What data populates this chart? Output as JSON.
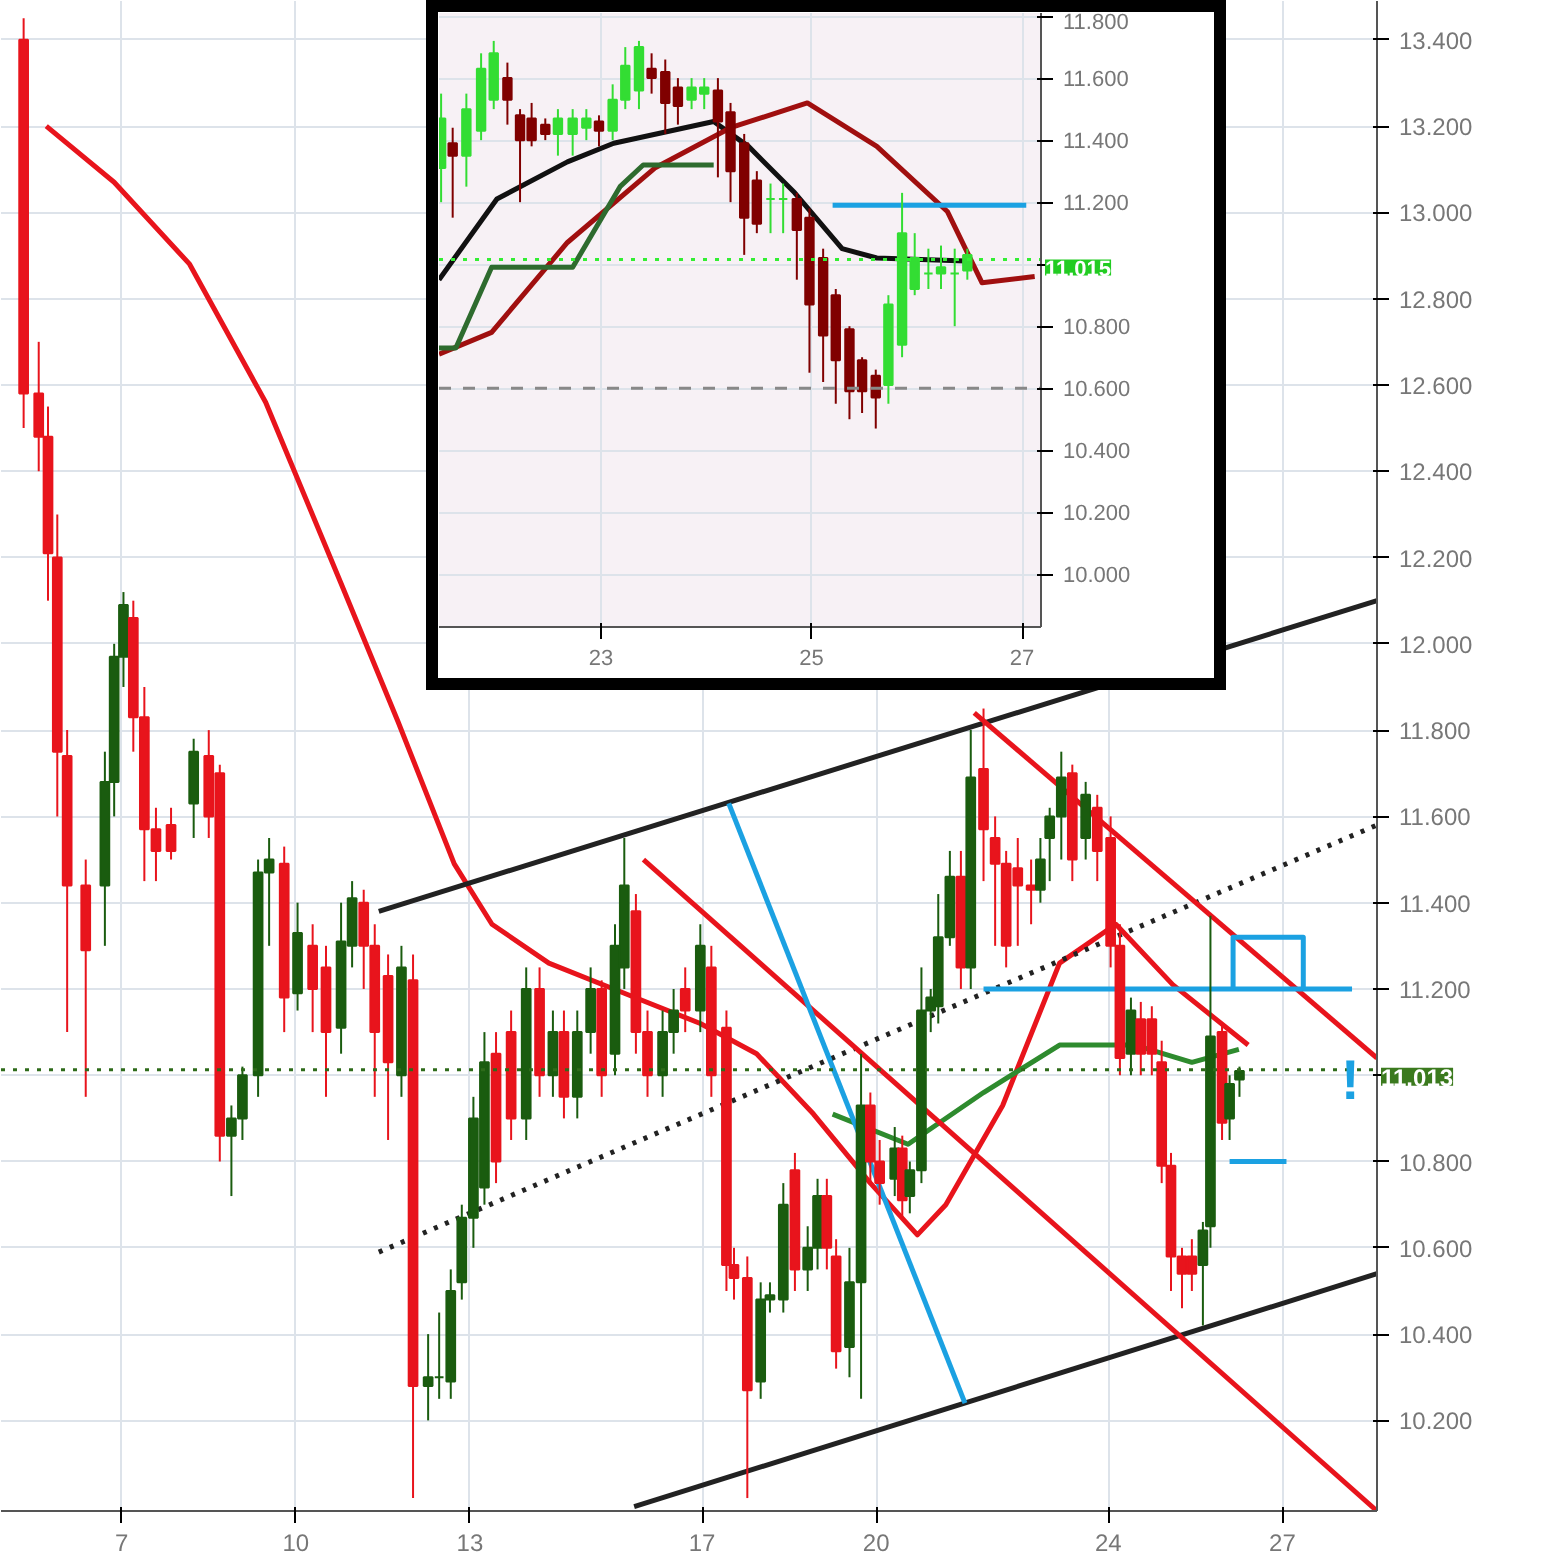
{
  "chart_data": [
    {
      "type": "candlestick",
      "x": [
        5.31,
        5.57,
        5.73,
        5.89,
        6.06,
        6.38,
        6.71,
        6.87,
        7.03,
        7.2,
        7.39,
        7.59,
        7.85,
        8.24,
        8.5,
        8.69,
        8.89,
        9.08,
        9.35,
        9.54,
        9.8,
        10.03,
        10.29,
        10.52,
        10.78,
        10.97,
        11.17,
        11.36,
        11.59,
        11.82,
        12.02,
        12.28,
        12.47,
        12.67,
        12.86,
        13.06,
        13.25,
        13.45,
        13.71,
        13.97,
        14.2,
        14.43,
        14.62,
        14.85,
        15.08,
        15.27,
        15.5,
        15.66,
        15.86,
        16.06,
        16.32,
        16.51,
        16.71,
        16.97,
        17.16,
        17.42,
        17.55,
        17.78,
        18.01,
        18.17,
        18.4,
        18.6,
        18.82,
        18.99,
        19.15,
        19.31,
        19.54,
        19.74,
        19.9,
        20.06,
        20.32,
        20.45,
        20.58,
        20.78,
        20.94,
        21.07,
        21.27,
        21.46,
        21.63,
        21.85,
        22.05,
        22.24,
        22.44,
        22.67,
        22.83,
        22.99,
        23.19,
        23.38,
        23.61,
        23.81,
        24.04,
        24.2,
        24.39,
        24.56,
        24.75,
        24.92,
        25.08,
        25.27,
        25.44,
        25.63,
        25.76,
        25.96,
        26.09,
        26.26
      ],
      "ohlc": [
        [
          13.4,
          13.45,
          12.5,
          12.58
        ],
        [
          12.58,
          12.7,
          12.4,
          12.48
        ],
        [
          12.48,
          12.55,
          12.1,
          12.21
        ],
        [
          12.2,
          12.3,
          11.6,
          11.75
        ],
        [
          11.74,
          11.8,
          11.1,
          11.44
        ],
        [
          11.44,
          11.5,
          10.95,
          11.29
        ],
        [
          11.44,
          11.75,
          11.3,
          11.68
        ],
        [
          11.68,
          12.0,
          11.6,
          11.97
        ],
        [
          11.97,
          12.12,
          11.9,
          12.09
        ],
        [
          12.06,
          12.1,
          11.75,
          11.83
        ],
        [
          11.83,
          11.9,
          11.45,
          11.57
        ],
        [
          11.57,
          11.62,
          11.45,
          11.52
        ],
        [
          11.58,
          11.62,
          11.5,
          11.52
        ],
        [
          11.63,
          11.78,
          11.55,
          11.75
        ],
        [
          11.74,
          11.8,
          11.55,
          11.6
        ],
        [
          11.7,
          11.72,
          10.8,
          10.86
        ],
        [
          10.86,
          10.93,
          10.72,
          10.9
        ],
        [
          10.9,
          11.02,
          10.85,
          11.0
        ],
        [
          11.0,
          11.5,
          10.95,
          11.47
        ],
        [
          11.47,
          11.55,
          11.3,
          11.5
        ],
        [
          11.49,
          11.53,
          11.1,
          11.18
        ],
        [
          11.19,
          11.4,
          11.15,
          11.33
        ],
        [
          11.3,
          11.35,
          11.1,
          11.2
        ],
        [
          11.25,
          11.3,
          10.95,
          11.1
        ],
        [
          11.11,
          11.4,
          11.05,
          11.31
        ],
        [
          11.3,
          11.45,
          11.25,
          11.41
        ],
        [
          11.4,
          11.43,
          11.2,
          11.3
        ],
        [
          11.3,
          11.35,
          10.95,
          11.1
        ],
        [
          11.23,
          11.28,
          10.85,
          11.03
        ],
        [
          11.0,
          11.3,
          10.95,
          11.25
        ],
        [
          11.22,
          11.28,
          10.02,
          10.28
        ],
        [
          10.28,
          10.4,
          10.2,
          10.3
        ],
        [
          10.3,
          10.45,
          10.25,
          10.3
        ],
        [
          10.29,
          10.55,
          10.25,
          10.5
        ],
        [
          10.52,
          10.7,
          10.48,
          10.67
        ],
        [
          10.67,
          10.95,
          10.6,
          10.9
        ],
        [
          10.74,
          11.1,
          10.7,
          11.03
        ],
        [
          11.05,
          11.1,
          10.75,
          10.8
        ],
        [
          11.1,
          11.15,
          10.85,
          10.9
        ],
        [
          10.9,
          11.25,
          10.85,
          11.2
        ],
        [
          11.2,
          11.25,
          10.95,
          11.0
        ],
        [
          11.0,
          11.15,
          10.95,
          11.1
        ],
        [
          11.1,
          11.15,
          10.9,
          10.95
        ],
        [
          10.95,
          11.15,
          10.9,
          11.1
        ],
        [
          11.1,
          11.25,
          11.05,
          11.2
        ],
        [
          11.2,
          11.22,
          10.95,
          11.0
        ],
        [
          11.05,
          11.35,
          11.0,
          11.3
        ],
        [
          11.25,
          11.55,
          11.2,
          11.44
        ],
        [
          11.38,
          11.42,
          11.05,
          11.1
        ],
        [
          11.1,
          11.15,
          10.95,
          11.0
        ],
        [
          11.0,
          11.15,
          10.95,
          11.1
        ],
        [
          11.1,
          11.2,
          11.05,
          11.15
        ],
        [
          11.2,
          11.25,
          11.1,
          11.15
        ],
        [
          11.15,
          11.35,
          11.1,
          11.3
        ],
        [
          11.25,
          11.3,
          10.95,
          11.0
        ],
        [
          11.11,
          11.15,
          10.5,
          10.56
        ],
        [
          10.56,
          10.6,
          10.48,
          10.53
        ],
        [
          10.53,
          10.58,
          10.02,
          10.27
        ],
        [
          10.29,
          10.52,
          10.25,
          10.48
        ],
        [
          10.48,
          10.52,
          10.45,
          10.49
        ],
        [
          10.48,
          10.75,
          10.45,
          10.7
        ],
        [
          10.78,
          10.82,
          10.5,
          10.55
        ],
        [
          10.55,
          10.65,
          10.5,
          10.6
        ],
        [
          10.6,
          10.76,
          10.55,
          10.72
        ],
        [
          10.72,
          10.76,
          10.55,
          10.6
        ],
        [
          10.58,
          10.62,
          10.32,
          10.36
        ],
        [
          10.37,
          10.6,
          10.3,
          10.52
        ],
        [
          10.52,
          11.05,
          10.25,
          10.93
        ],
        [
          10.93,
          10.96,
          10.75,
          10.8
        ],
        [
          10.8,
          10.85,
          10.7,
          10.75
        ],
        [
          10.76,
          10.88,
          10.72,
          10.83
        ],
        [
          10.83,
          10.86,
          10.67,
          10.71
        ],
        [
          10.72,
          10.8,
          10.68,
          10.78
        ],
        [
          10.78,
          11.25,
          10.75,
          11.15
        ],
        [
          11.15,
          11.2,
          11.1,
          11.18
        ],
        [
          11.16,
          11.42,
          11.12,
          11.32
        ],
        [
          11.32,
          11.52,
          11.3,
          11.46
        ],
        [
          11.46,
          11.52,
          11.2,
          11.25
        ],
        [
          11.25,
          11.8,
          11.2,
          11.69
        ],
        [
          11.71,
          11.85,
          11.45,
          11.57
        ],
        [
          11.55,
          11.6,
          11.3,
          11.49
        ],
        [
          11.49,
          11.52,
          11.25,
          11.3
        ],
        [
          11.48,
          11.55,
          11.3,
          11.44
        ],
        [
          11.44,
          11.5,
          11.35,
          11.43
        ],
        [
          11.43,
          11.55,
          11.4,
          11.5
        ],
        [
          11.55,
          11.62,
          11.45,
          11.6
        ],
        [
          11.6,
          11.75,
          11.5,
          11.69
        ],
        [
          11.7,
          11.72,
          11.45,
          11.5
        ],
        [
          11.55,
          11.68,
          11.5,
          11.65
        ],
        [
          11.62,
          11.65,
          11.45,
          11.52
        ],
        [
          11.55,
          11.6,
          11.25,
          11.3
        ],
        [
          11.3,
          11.35,
          11.0,
          11.04
        ],
        [
          11.05,
          11.18,
          11.0,
          11.15
        ],
        [
          11.13,
          11.17,
          11.0,
          11.05
        ],
        [
          11.13,
          11.16,
          11.0,
          11.05
        ],
        [
          11.03,
          11.08,
          10.75,
          10.79
        ],
        [
          10.79,
          10.82,
          10.5,
          10.58
        ],
        [
          10.58,
          10.6,
          10.46,
          10.54
        ],
        [
          10.58,
          10.62,
          10.5,
          10.54
        ],
        [
          10.56,
          10.66,
          10.42,
          10.64
        ],
        [
          10.65,
          11.37,
          10.6,
          11.09
        ],
        [
          11.1,
          11.12,
          10.85,
          10.89
        ],
        [
          10.9,
          11.0,
          10.85,
          10.98
        ],
        [
          10.99,
          11.02,
          10.95,
          11.01
        ]
      ],
      "series": [
        {
          "type": "line",
          "color": "#e8141c",
          "x": [
            5.7,
            6.87,
            8.17,
            9.48,
            10.78,
            11.76,
            12.73,
            13.38,
            14.36,
            15.66,
            16.97,
            17.94,
            18.92,
            19.9,
            20.71,
            21.2,
            22.18,
            23.16,
            24.13,
            25.11,
            26.41
          ],
          "values": [
            13.2,
            13.07,
            12.88,
            12.56,
            12.14,
            11.82,
            11.49,
            11.35,
            11.26,
            11.19,
            11.12,
            11.05,
            10.91,
            10.75,
            10.63,
            10.7,
            10.93,
            11.26,
            11.35,
            11.21,
            11.07
          ]
        },
        {
          "type": "line",
          "color": "#2e8b2e",
          "x": [
            19.25,
            20.55,
            21.85,
            23.16,
            24.46,
            25.44,
            26.25
          ],
          "values": [
            10.91,
            10.84,
            10.96,
            11.07,
            11.07,
            11.03,
            11.06
          ]
        },
        {
          "type": "line",
          "color": "#222222",
          "x": [
            11.43,
            28.63
          ],
          "values": [
            11.38,
            12.1
          ]
        },
        {
          "type": "line",
          "color": "#222222",
          "x": [
            15.83,
            28.63
          ],
          "values": [
            10.0,
            10.54
          ]
        },
        {
          "type": "line",
          "color": "#222222",
          "line_style": "dotted",
          "x": [
            11.43,
            28.63
          ],
          "values": [
            10.59,
            11.58
          ]
        },
        {
          "type": "line",
          "color": "#e8141c",
          "x": [
            21.69,
            28.63
          ],
          "values": [
            11.84,
            11.04
          ]
        },
        {
          "type": "line",
          "color": "#e8141c",
          "x": [
            15.99,
            28.63
          ],
          "values": [
            11.5,
            9.99
          ]
        },
        {
          "type": "line",
          "color": "#1ba1e2",
          "x": [
            21.85,
            28.2
          ],
          "values": [
            11.2,
            11.2
          ]
        },
        {
          "type": "line",
          "color": "#1ba1e2",
          "x": [
            17.46,
            21.53
          ],
          "values": [
            11.63,
            10.24
          ]
        },
        {
          "type": "line",
          "color": "#1ba1e2",
          "x": [
            26.15,
            26.15,
            27.36,
            27.36
          ],
          "values": [
            11.2,
            11.32,
            11.32,
            11.2
          ]
        },
        {
          "type": "line",
          "color": "#1ba1e2",
          "x": [
            26.09,
            27.07
          ],
          "values": [
            10.8,
            10.8
          ]
        }
      ],
      "xlim": [
        4.92,
        28.63
      ],
      "ylim": [
        9.99,
        13.49
      ],
      "xticks": [
        7,
        10,
        13,
        17,
        20,
        24,
        27
      ],
      "yticks": [
        {
          "value": 10.2,
          "label": "10.200"
        },
        {
          "value": 10.4,
          "label": "10.400"
        },
        {
          "value": 10.6,
          "label": "10.600"
        },
        {
          "value": 10.8,
          "label": "10.800"
        },
        {
          "value": 11.0,
          "label": null
        },
        {
          "value": 11.2,
          "label": "11.200"
        },
        {
          "value": 11.4,
          "label": "11.400"
        },
        {
          "value": 11.6,
          "label": "11.600"
        },
        {
          "value": 11.8,
          "label": "11.800"
        },
        {
          "value": 12.0,
          "label": "12.000"
        },
        {
          "value": 12.2,
          "label": "12.200"
        },
        {
          "value": 12.4,
          "label": "12.400"
        },
        {
          "value": 12.6,
          "label": "12.600"
        },
        {
          "value": 12.8,
          "label": "12.800"
        },
        {
          "value": 13.0,
          "label": "13.000"
        },
        {
          "value": 13.2,
          "label": "13.200"
        },
        {
          "value": 13.4,
          "label": "13.400"
        }
      ],
      "ref_lines": [
        {
          "axis": "y",
          "value": 11.013,
          "label": "11.013",
          "color": "#2e6b1a",
          "line_style": "dotted"
        }
      ],
      "annotations": [
        "!"
      ],
      "grid": true
    },
    {
      "type": "candlestick",
      "x": [
        21.48,
        21.59,
        21.72,
        21.86,
        21.98,
        22.11,
        22.23,
        22.34,
        22.47,
        22.59,
        22.73,
        22.86,
        22.98,
        23.11,
        23.23,
        23.36,
        23.48,
        23.61,
        23.73,
        23.86,
        23.98,
        24.11,
        24.23,
        24.36,
        24.48,
        24.61,
        24.73,
        24.86,
        24.98,
        25.11,
        25.23,
        25.36,
        25.48,
        25.61,
        25.73,
        25.86,
        25.98,
        26.11,
        26.23,
        26.36,
        26.48
      ],
      "ohlc": [
        [
          11.31,
          11.55,
          11.2,
          11.47
        ],
        [
          11.39,
          11.44,
          11.15,
          11.35
        ],
        [
          11.35,
          11.55,
          11.25,
          11.5
        ],
        [
          11.43,
          11.68,
          11.4,
          11.63
        ],
        [
          11.53,
          11.72,
          11.5,
          11.68
        ],
        [
          11.6,
          11.65,
          11.45,
          11.53
        ],
        [
          11.48,
          11.5,
          11.2,
          11.4
        ],
        [
          11.47,
          11.52,
          11.38,
          11.4
        ],
        [
          11.45,
          11.47,
          11.4,
          11.42
        ],
        [
          11.42,
          11.5,
          11.35,
          11.47
        ],
        [
          11.42,
          11.5,
          11.35,
          11.47
        ],
        [
          11.44,
          11.5,
          11.4,
          11.47
        ],
        [
          11.46,
          11.48,
          11.38,
          11.43
        ],
        [
          11.43,
          11.58,
          11.4,
          11.53
        ],
        [
          11.53,
          11.7,
          11.5,
          11.64
        ],
        [
          11.56,
          11.72,
          11.5,
          11.7
        ],
        [
          11.63,
          11.68,
          11.55,
          11.6
        ],
        [
          11.62,
          11.66,
          11.42,
          11.52
        ],
        [
          11.57,
          11.6,
          11.45,
          11.51
        ],
        [
          11.53,
          11.6,
          11.5,
          11.57
        ],
        [
          11.55,
          11.6,
          11.5,
          11.57
        ],
        [
          11.56,
          11.6,
          11.28,
          11.46
        ],
        [
          11.49,
          11.52,
          11.2,
          11.3
        ],
        [
          11.39,
          11.42,
          11.03,
          11.15
        ],
        [
          11.27,
          11.3,
          11.1,
          11.13
        ],
        [
          11.21,
          11.26,
          11.1,
          11.21
        ],
        [
          11.21,
          11.26,
          11.1,
          11.21
        ],
        [
          11.21,
          11.23,
          10.95,
          11.11
        ],
        [
          11.15,
          11.18,
          10.65,
          10.87
        ],
        [
          11.02,
          11.05,
          10.62,
          10.77
        ],
        [
          10.9,
          10.92,
          10.55,
          10.69
        ],
        [
          10.79,
          10.8,
          10.5,
          10.59
        ],
        [
          10.69,
          10.7,
          10.52,
          10.59
        ],
        [
          10.64,
          10.66,
          10.47,
          10.57
        ],
        [
          10.61,
          10.9,
          10.55,
          10.87
        ],
        [
          10.74,
          11.23,
          10.7,
          11.1
        ],
        [
          10.92,
          11.1,
          10.9,
          11.02
        ],
        [
          10.97,
          11.05,
          10.92,
          10.97
        ],
        [
          10.97,
          11.06,
          10.92,
          10.99
        ],
        [
          10.97,
          11.05,
          10.8,
          10.97
        ],
        [
          10.98,
          11.05,
          10.95,
          11.03
        ]
      ],
      "series": [
        {
          "type": "line",
          "color": "#111111",
          "x": [
            21.46,
            22.01,
            22.68,
            23.12,
            24.07,
            24.4,
            24.84,
            25.29,
            25.62,
            26.46
          ],
          "values": [
            10.95,
            11.21,
            11.33,
            11.39,
            11.46,
            11.38,
            11.23,
            11.05,
            11.02,
            11.01
          ]
        },
        {
          "type": "line",
          "color": "#a00f0f",
          "x": [
            21.46,
            21.96,
            22.68,
            23.51,
            24.23,
            24.96,
            25.62,
            26.29,
            26.62,
            27.12
          ],
          "values": [
            10.71,
            10.78,
            11.07,
            11.31,
            11.44,
            11.52,
            11.38,
            11.17,
            10.94,
            10.96
          ]
        },
        {
          "type": "line",
          "color": "#2e6b2e",
          "x": [
            21.46,
            21.62,
            21.96,
            22.73,
            23.18,
            23.4,
            24.07
          ],
          "values": [
            10.73,
            10.73,
            10.99,
            10.99,
            11.25,
            11.32,
            11.32
          ]
        },
        {
          "type": "line",
          "color": "#1ba1e2",
          "x": [
            25.2,
            27.04
          ],
          "values": [
            11.19,
            11.19
          ]
        }
      ],
      "xlim": [
        21.46,
        27.18
      ],
      "ylim": [
        9.83,
        11.81
      ],
      "xticks": [
        23,
        25,
        27
      ],
      "yticks": [
        {
          "value": 10.0,
          "label": "10.000"
        },
        {
          "value": 10.2,
          "label": "10.200"
        },
        {
          "value": 10.4,
          "label": "10.400"
        },
        {
          "value": 10.6,
          "label": "10.600"
        },
        {
          "value": 10.8,
          "label": "10.800"
        },
        {
          "value": 11.0,
          "label": null
        },
        {
          "value": 11.2,
          "label": "11.200"
        },
        {
          "value": 11.4,
          "label": "11.400"
        },
        {
          "value": 11.6,
          "label": "11.600"
        },
        {
          "value": 11.8,
          "label": "11.800"
        }
      ],
      "ref_lines": [
        {
          "axis": "y",
          "value": 11.015,
          "label": "11.015",
          "color": "#33ee33",
          "line_style": "dotted"
        },
        {
          "axis": "y",
          "value": 10.6,
          "color": "#888888",
          "line_style": "dashed"
        }
      ],
      "grid": true
    }
  ]
}
